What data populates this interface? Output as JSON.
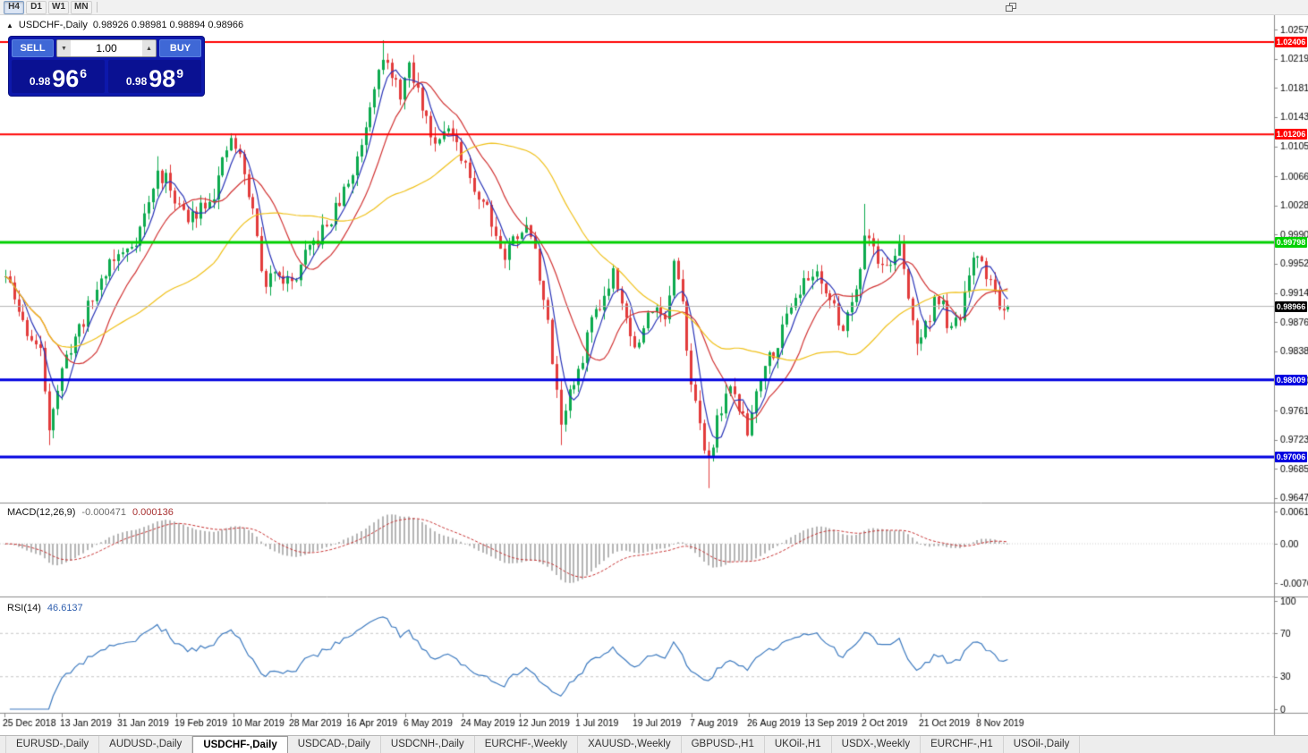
{
  "toolbar": {
    "timeframes": [
      {
        "label": "H4",
        "active": true
      },
      {
        "label": "D1",
        "active": false
      },
      {
        "label": "W1",
        "active": false
      },
      {
        "label": "MN",
        "active": false
      }
    ]
  },
  "symbol_header": {
    "symbol": "USDCHF-,Daily",
    "ohlc": "0.98926 0.98981 0.98894 0.98966"
  },
  "icons": {
    "spin_down": "▼",
    "spin_up": "▲",
    "symbol_marker": "▲"
  },
  "one_click": {
    "sell_label": "SELL",
    "buy_label": "BUY",
    "volume": "1.00",
    "sell_price": {
      "prefix": "0.98",
      "big": "96",
      "sup": "6"
    },
    "buy_price": {
      "prefix": "0.98",
      "big": "98",
      "sup": "9"
    }
  },
  "indicators": {
    "macd_name": "MACD(12,26,9)",
    "macd_value_main": "-0.000471",
    "macd_value_signal": "0.000136",
    "rsi_name": "RSI(14)",
    "rsi_value": "46.6137"
  },
  "tabs": [
    {
      "label": "EURUSD-,Daily",
      "active": false
    },
    {
      "label": "AUDUSD-,Daily",
      "active": false
    },
    {
      "label": "USDCHF-,Daily",
      "active": true
    },
    {
      "label": "USDCAD-,Daily",
      "active": false
    },
    {
      "label": "USDCNH-,Daily",
      "active": false
    },
    {
      "label": "EURCHF-,Weekly",
      "active": false
    },
    {
      "label": "XAUUSD-,Weekly",
      "active": false
    },
    {
      "label": "GBPUSD-,H1",
      "active": false
    },
    {
      "label": "UKOil-,H1",
      "active": false
    },
    {
      "label": "USDX-,Weekly",
      "active": false
    },
    {
      "label": "EURCHF-,H1",
      "active": false
    },
    {
      "label": "USOil-,Daily",
      "active": false
    }
  ],
  "chart_data": {
    "type": "candlestick",
    "symbol": "USDCHF",
    "timeframe": "Daily",
    "y_ticks": [
      "1.02570",
      "1.02190",
      "1.01810",
      "1.01430",
      "1.01050",
      "1.00660",
      "1.00280",
      "0.99900",
      "0.99520",
      "0.99140",
      "0.98760",
      "0.98380",
      "0.98000",
      "0.97610",
      "0.97230",
      "0.96850",
      "0.96470"
    ],
    "x_labels": [
      "25 Dec 2018",
      "13 Jan 2019",
      "31 Jan 2019",
      "19 Feb 2019",
      "10 Mar 2019",
      "28 Mar 2019",
      "16 Apr 2019",
      "6 May 2019",
      "24 May 2019",
      "12 Jun 2019",
      "1 Jul 2019",
      "19 Jul 2019",
      "7 Aug 2019",
      "26 Aug 2019",
      "13 Sep 2019",
      "2 Oct 2019",
      "21 Oct 2019",
      "8 Nov 2019"
    ],
    "hlines": [
      {
        "price": 1.02406,
        "label": "1.02406",
        "color": "#ff0000",
        "width": 2
      },
      {
        "price": 1.01206,
        "label": "1.01206",
        "color": "#ff0000",
        "width": 2
      },
      {
        "price": 0.99798,
        "label": "0.99798",
        "color": "#00d000",
        "width": 3
      },
      {
        "price": 0.98009,
        "label": "0.98009",
        "color": "#0000e0",
        "width": 3
      },
      {
        "price": 0.97006,
        "label": "0.97006",
        "color": "#0000e0",
        "width": 3
      }
    ],
    "current_price": {
      "price": 0.98966,
      "label": "0.98966",
      "line_color": "#b4b4b4",
      "badge_color": "#000000"
    },
    "candle_count": 232,
    "seed": 11,
    "price_anchors": [
      [
        0,
        0.9935
      ],
      [
        2,
        0.9905
      ],
      [
        4,
        0.9875
      ],
      [
        6,
        0.9855
      ],
      [
        8,
        0.9835
      ],
      [
        10,
        0.9745
      ],
      [
        12,
        0.979
      ],
      [
        15,
        0.9845
      ],
      [
        18,
        0.988
      ],
      [
        21,
        0.992
      ],
      [
        24,
        0.9955
      ],
      [
        27,
        0.9965
      ],
      [
        30,
        0.9985
      ],
      [
        33,
        1.003
      ],
      [
        35,
        1.007
      ],
      [
        37,
        1.006
      ],
      [
        40,
        1.003
      ],
      [
        42,
        1.0005
      ],
      [
        45,
        1.003
      ],
      [
        48,
        1.0045
      ],
      [
        50,
        1.008
      ],
      [
        52,
        1.0115
      ],
      [
        54,
        1.009
      ],
      [
        57,
        1.002
      ],
      [
        60,
        0.9915
      ],
      [
        62,
        0.995
      ],
      [
        64,
        0.9935
      ],
      [
        66,
        0.9925
      ],
      [
        69,
        0.996
      ],
      [
        72,
        0.9985
      ],
      [
        75,
        1.001
      ],
      [
        78,
        1.0045
      ],
      [
        80,
        1.007
      ],
      [
        82,
        1.011
      ],
      [
        84,
        1.016
      ],
      [
        86,
        1.0215
      ],
      [
        87,
        1.0225
      ],
      [
        89,
        1.019
      ],
      [
        91,
        1.0175
      ],
      [
        93,
        1.0205
      ],
      [
        95,
        1.0175
      ],
      [
        97,
        1.014
      ],
      [
        99,
        1.011
      ],
      [
        101,
        1.0135
      ],
      [
        103,
        1.0115
      ],
      [
        105,
        1.0085
      ],
      [
        107,
        1.0065
      ],
      [
        109,
        1.004
      ],
      [
        111,
        1.003
      ],
      [
        113,
        0.999
      ],
      [
        115,
        0.996
      ],
      [
        117,
        0.9985
      ],
      [
        119,
        1.0
      ],
      [
        121,
        0.999
      ],
      [
        123,
        0.994
      ],
      [
        125,
        0.987
      ],
      [
        127,
        0.979
      ],
      [
        128,
        0.9745
      ],
      [
        130,
        0.9785
      ],
      [
        132,
        0.9805
      ],
      [
        134,
        0.986
      ],
      [
        136,
        0.9895
      ],
      [
        138,
        0.991
      ],
      [
        140,
        0.9945
      ],
      [
        142,
        0.991
      ],
      [
        144,
        0.9855
      ],
      [
        146,
        0.9845
      ],
      [
        148,
        0.9885
      ],
      [
        150,
        0.9905
      ],
      [
        152,
        0.9875
      ],
      [
        154,
        0.995
      ],
      [
        156,
        0.9895
      ],
      [
        158,
        0.9805
      ],
      [
        160,
        0.9735
      ],
      [
        162,
        0.97
      ],
      [
        164,
        0.9745
      ],
      [
        166,
        0.9785
      ],
      [
        168,
        0.978
      ],
      [
        170,
        0.975
      ],
      [
        171,
        0.973
      ],
      [
        173,
        0.979
      ],
      [
        175,
        0.9825
      ],
      [
        177,
        0.984
      ],
      [
        179,
        0.9865
      ],
      [
        181,
        0.9905
      ],
      [
        183,
        0.992
      ],
      [
        185,
        0.993
      ],
      [
        187,
        0.9945
      ],
      [
        189,
        0.992
      ],
      [
        191,
        0.989
      ],
      [
        193,
        0.987
      ],
      [
        195,
        0.9905
      ],
      [
        197,
        0.995
      ],
      [
        198,
        0.9995
      ],
      [
        200,
        0.9975
      ],
      [
        202,
        0.9945
      ],
      [
        204,
        0.9955
      ],
      [
        206,
        0.9975
      ],
      [
        208,
        0.9905
      ],
      [
        210,
        0.985
      ],
      [
        212,
        0.987
      ],
      [
        214,
        0.9905
      ],
      [
        216,
        0.9895
      ],
      [
        218,
        0.986
      ],
      [
        220,
        0.9885
      ],
      [
        222,
        0.9935
      ],
      [
        224,
        0.9965
      ],
      [
        226,
        0.994
      ],
      [
        228,
        0.9915
      ],
      [
        230,
        0.989
      ],
      [
        231,
        0.9897
      ]
    ],
    "forced_points": {
      "10": {
        "low": 0.9716
      },
      "35": {
        "high": 1.0092
      },
      "52": {
        "high": 1.0122
      },
      "87": {
        "high": 1.0243
      },
      "128": {
        "low": 0.9716
      },
      "162": {
        "low": 0.966
      },
      "171": {
        "low": 0.9727
      },
      "198": {
        "high": 1.003
      },
      "210": {
        "low": 0.9833
      }
    },
    "last_candle": {
      "open": 0.98926,
      "high": 0.98981,
      "low": 0.98894,
      "close": 0.98966
    },
    "mas": [
      {
        "period": 5,
        "color": "#2a35b8"
      },
      {
        "period": 13,
        "color": "#d23434"
      },
      {
        "period": 40,
        "color": "#f0c11a"
      }
    ],
    "colors": {
      "up": "#0caa4e",
      "down": "#e23b3b",
      "macd_hist": "#b5b5b5",
      "macd_signal": "#c83232",
      "rsi": "#3e7bc0",
      "grid": "#cfcfcf"
    },
    "macd_ticks": [
      "0.00613",
      "0.00",
      "-0.00761"
    ],
    "rsi_ticks": [
      "100",
      "70",
      "30",
      "0"
    ],
    "rsi_levels": [
      70,
      30
    ]
  }
}
